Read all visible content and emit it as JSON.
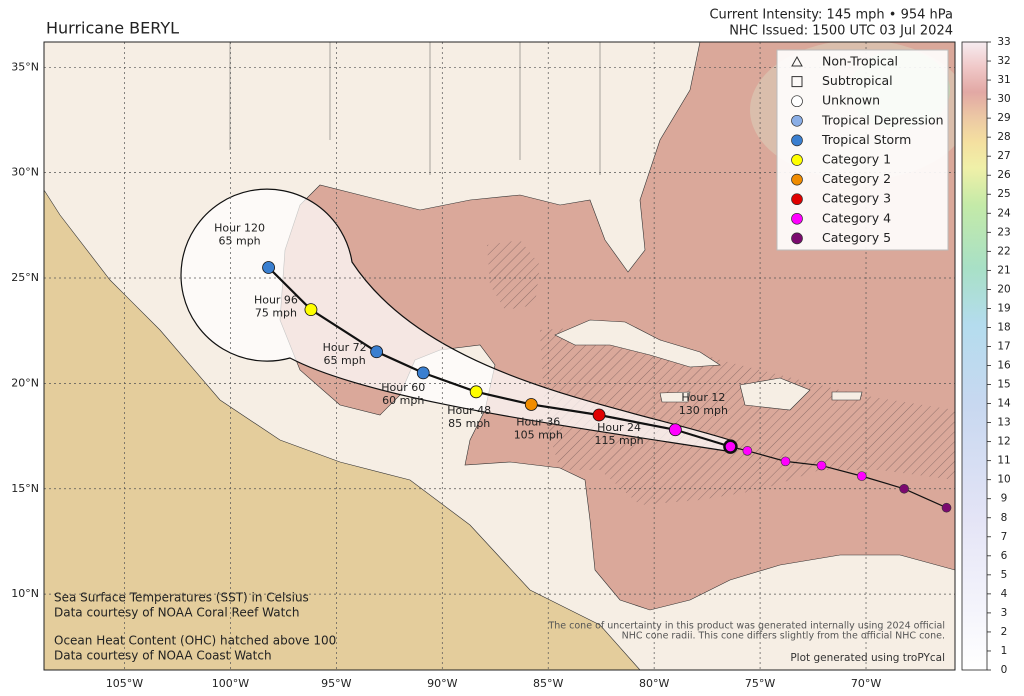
{
  "header": {
    "title": "Hurricane BERYL",
    "intensity": "Current Intensity: 145 mph • 954 hPa",
    "issued": "NHC Issued: 1500 UTC 03 Jul 2024"
  },
  "map": {
    "lonlim": [
      -108.8,
      -65.8
    ],
    "latlim": [
      6.4,
      36.2
    ],
    "lonticks": [
      {
        "value": -105,
        "label": "105°W"
      },
      {
        "value": -100,
        "label": "100°W"
      },
      {
        "value": -95,
        "label": "95°W"
      },
      {
        "value": -90,
        "label": "90°W"
      },
      {
        "value": -85,
        "label": "85°W"
      },
      {
        "value": -80,
        "label": "80°W"
      },
      {
        "value": -75,
        "label": "75°W"
      },
      {
        "value": -70,
        "label": "70°W"
      }
    ],
    "latticks": [
      {
        "value": 35,
        "label": "35°N"
      },
      {
        "value": 30,
        "label": "30°N"
      },
      {
        "value": 25,
        "label": "25°N"
      },
      {
        "value": 20,
        "label": "20°N"
      },
      {
        "value": 15,
        "label": "15°N"
      },
      {
        "value": 10,
        "label": "10°N"
      }
    ],
    "past": [
      {
        "lon": -66.2,
        "lat": 14.1,
        "color": "#7b0a6f"
      },
      {
        "lon": -68.2,
        "lat": 15.0,
        "color": "#7b0a6f"
      },
      {
        "lon": -70.2,
        "lat": 15.6,
        "color": "#ff00ff"
      },
      {
        "lon": -72.1,
        "lat": 16.1,
        "color": "#ff00ff"
      },
      {
        "lon": -73.8,
        "lat": 16.3,
        "color": "#ff00ff"
      },
      {
        "lon": -75.6,
        "lat": 16.8,
        "color": "#ff00ff"
      }
    ],
    "forecast": [
      {
        "lon": -76.4,
        "lat": 17.0,
        "color": "#ff00ff"
      },
      {
        "lon": -79.0,
        "lat": 17.8,
        "color": "#ff00ff",
        "label": "Hour 12",
        "intensity": "130 mph"
      },
      {
        "lon": -82.6,
        "lat": 18.5,
        "color": "#e00000",
        "label": "Hour 24",
        "intensity": "115 mph"
      },
      {
        "lon": -85.8,
        "lat": 19.0,
        "color": "#f08c00",
        "label": "Hour 36",
        "intensity": "105 mph"
      },
      {
        "lon": -88.4,
        "lat": 19.6,
        "color": "#ffff00",
        "label": "Hour 48",
        "intensity": "85 mph"
      },
      {
        "lon": -90.9,
        "lat": 20.5,
        "color": "#3a7fd0",
        "label": "Hour 60",
        "intensity": "60 mph"
      },
      {
        "lon": -93.1,
        "lat": 21.5,
        "color": "#3a7fd0",
        "label": "Hour 72",
        "intensity": "65 mph"
      },
      {
        "lon": -96.2,
        "lat": 23.5,
        "color": "#ffff00",
        "label": "Hour 96",
        "intensity": "75 mph"
      },
      {
        "lon": -98.2,
        "lat": 25.5,
        "color": "#3a7fd0",
        "label": "Hour 120",
        "intensity": "65 mph"
      }
    ]
  },
  "legend": [
    {
      "name": "Non-Tropical",
      "marker": "triangle"
    },
    {
      "name": "Subtropical",
      "marker": "square"
    },
    {
      "name": "Unknown",
      "marker": "circle",
      "color": "#ffffff"
    },
    {
      "name": "Tropical Depression",
      "marker": "circle",
      "color": "#8aaee6"
    },
    {
      "name": "Tropical Storm",
      "marker": "circle",
      "color": "#3a7fd0"
    },
    {
      "name": "Category 1",
      "marker": "circle",
      "color": "#ffff00"
    },
    {
      "name": "Category 2",
      "marker": "circle",
      "color": "#f08c00"
    },
    {
      "name": "Category 3",
      "marker": "circle",
      "color": "#e00000"
    },
    {
      "name": "Category 4",
      "marker": "circle",
      "color": "#ff00ff"
    },
    {
      "name": "Category 5",
      "marker": "circle",
      "color": "#7b0a6f"
    }
  ],
  "colorbar": {
    "lim": [
      0,
      33
    ],
    "ticks": [
      0,
      1,
      2,
      3,
      4,
      5,
      6,
      7,
      8,
      9,
      10,
      11,
      12,
      13,
      14,
      15,
      16,
      17,
      18,
      19,
      20,
      21,
      22,
      23,
      24,
      25,
      26,
      27,
      28,
      29,
      30,
      31,
      32,
      33
    ]
  },
  "notes": [
    "Sea Surface Temperatures (SST) in Celsius",
    "Data courtesy of NOAA Coral Reef Watch",
    "Ocean Heat Content (OHC) hatched above 100",
    "Data courtesy of NOAA Coast Watch"
  ],
  "disclaimer": [
    "The cone of uncertainty in this product was generated internally using 2024 official",
    "NHC cone radii. This cone differs slightly from the official NHC cone."
  ],
  "credit": "Plot generated using troPYcal"
}
